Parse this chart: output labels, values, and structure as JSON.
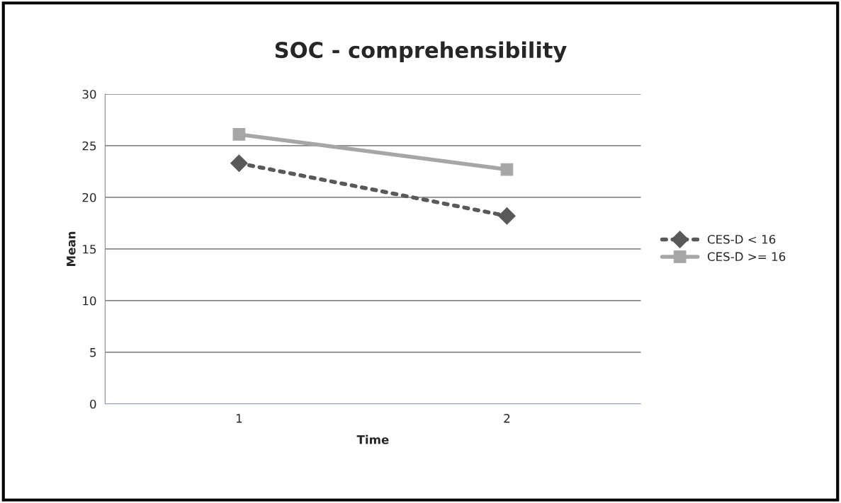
{
  "chart_data": {
    "type": "line",
    "title": "SOC - comprehensibility",
    "xlabel": "Time",
    "ylabel": "Mean",
    "categories": [
      "1",
      "2"
    ],
    "series": [
      {
        "name": "CES-D < 16",
        "color": "#595959",
        "values": [
          23.3,
          18.2
        ],
        "marker": "diamond",
        "line_style": "dotted"
      },
      {
        "name": "CES-D >= 16",
        "color": "#a6a6a6",
        "values": [
          26.1,
          22.7
        ],
        "marker": "square",
        "line_style": "solid"
      }
    ],
    "ylim": [
      0,
      30
    ],
    "yticks": [
      0,
      5,
      10,
      15,
      20,
      25,
      30
    ],
    "grid": "y",
    "legend": "right"
  }
}
